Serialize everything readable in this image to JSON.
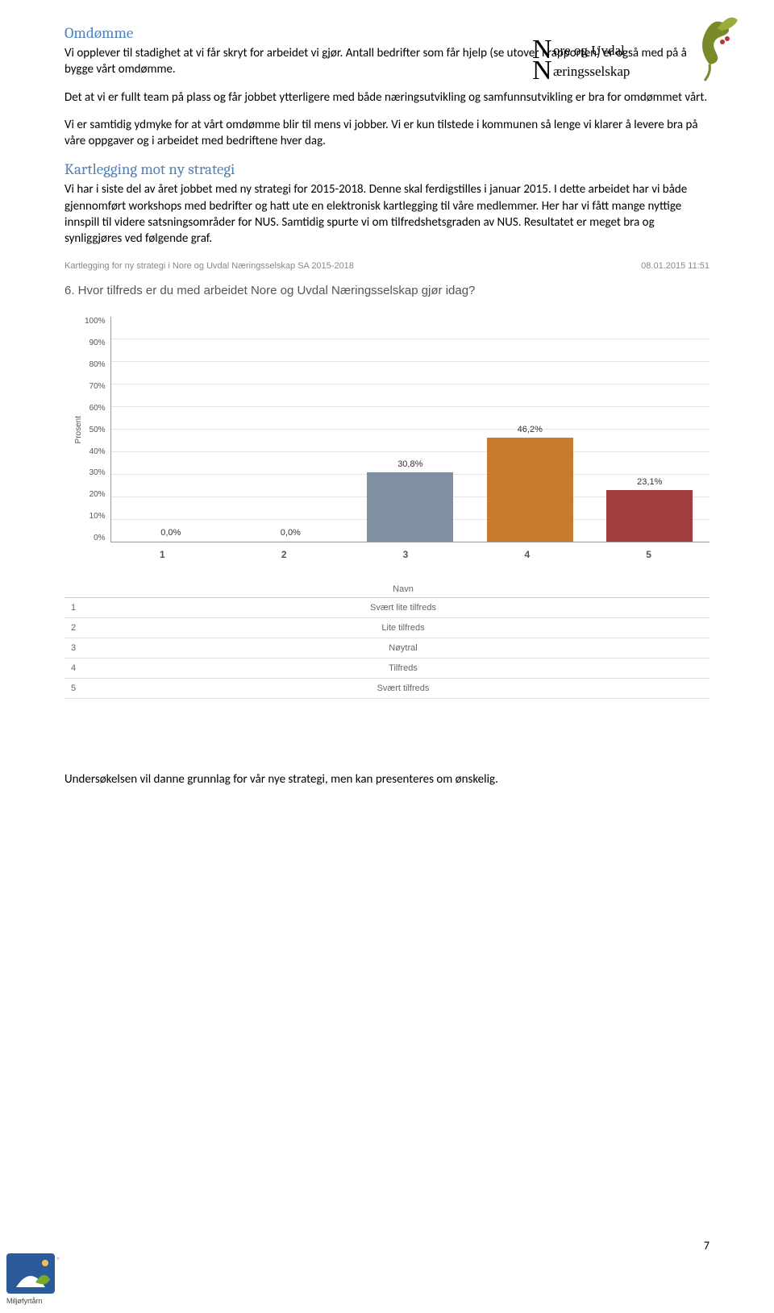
{
  "logo": {
    "line1": "ore og Uvdal",
    "line2": "æringsselskap",
    "letter1": "N",
    "letter2": "N"
  },
  "sections": {
    "omdomme": {
      "title": "Omdømme",
      "p1": "Vi opplever til stadighet at vi får skryt for arbeidet vi gjør. Antall bedrifter som får hjelp (se utover i rapporten) er også med på å bygge vårt omdømme.",
      "p2": "Det at vi er fullt team på plass og får jobbet ytterligere med både næringsutvikling og samfunnsutvikling er bra for omdømmet vårt.",
      "p3": "Vi er samtidig ydmyke for at vårt omdømme blir til mens vi jobber. Vi er kun tilstede i kommunen så lenge vi klarer å levere bra på våre oppgaver og i arbeidet med bedriftene hver dag."
    },
    "kartlegging": {
      "title": "Kartlegging mot ny strategi",
      "p1": "Vi har i siste del av året jobbet med ny strategi for 2015-2018. Denne skal ferdigstilles i januar 2015. I dette arbeidet har vi både gjennomført workshops med bedrifter og hatt ute en elektronisk kartlegging til våre medlemmer. Her har vi fått mange nyttige innspill til videre satsningsområder for NUS. Samtidig spurte vi om tilfredshetsgraden av NUS. Resultatet er meget bra og synliggjøres ved følgende graf."
    }
  },
  "survey": {
    "header_left": "Kartlegging for ny strategi i Nore og Uvdal Næringsselskap SA 2015-2018",
    "header_right": "08.01.2015 11:51",
    "question": "6. Hvor tilfreds er du med arbeidet Nore og Uvdal Næringsselskap gjør idag?",
    "chart": {
      "type": "bar",
      "ylabel": "Prosent",
      "ylim": [
        0,
        100
      ],
      "ytick_step": 10,
      "yticks": [
        "100%",
        "90%",
        "80%",
        "70%",
        "60%",
        "50%",
        "40%",
        "30%",
        "20%",
        "10%",
        "0%"
      ],
      "background_color": "#ffffff",
      "grid_color": "#e5e5e5",
      "categories": [
        "1",
        "2",
        "3",
        "4",
        "5"
      ],
      "bars": [
        {
          "label": "0,0%",
          "value": 0,
          "color": "#3f5b72"
        },
        {
          "label": "0,0%",
          "value": 0,
          "color": "#b94934"
        },
        {
          "label": "30,8%",
          "value": 30.8,
          "color": "#8090a0"
        },
        {
          "label": "46,2%",
          "value": 46.2,
          "color": "#c87b2e"
        },
        {
          "label": "23,1%",
          "value": 23.1,
          "color": "#a13d3d"
        }
      ]
    },
    "legend": {
      "title": "Navn",
      "rows": [
        {
          "idx": "1",
          "label": "Svært lite tilfreds"
        },
        {
          "idx": "2",
          "label": "Lite tilfreds"
        },
        {
          "idx": "3",
          "label": "Nøytral"
        },
        {
          "idx": "4",
          "label": "Tilfreds"
        },
        {
          "idx": "5",
          "label": "Svært tilfreds"
        }
      ]
    }
  },
  "closing": "Undersøkelsen vil danne grunnlag for vår nye strategi, men kan presenteres om ønskelig.",
  "page_number": "7"
}
